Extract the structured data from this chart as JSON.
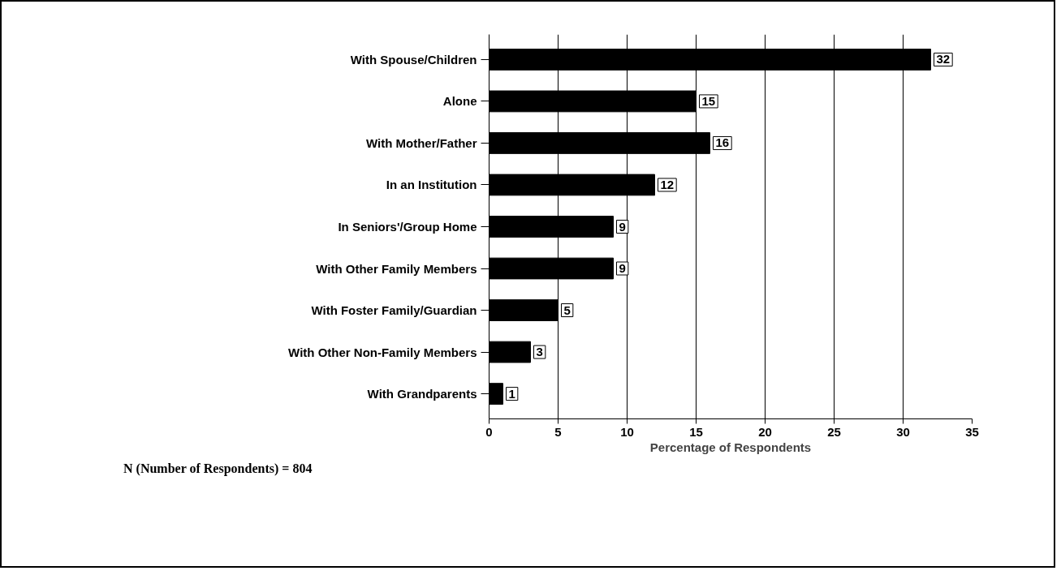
{
  "chart_data": {
    "type": "bar",
    "orientation": "horizontal",
    "xlabel": "Percentage of Respondents",
    "categories": [
      "With Spouse/Children",
      "Alone",
      "With Mother/Father",
      "In an Institution",
      "In Seniors'/Group Home",
      "With Other Family Members",
      "With Foster Family/Guardian",
      "With Other Non-Family Members",
      "With Grandparents"
    ],
    "values": [
      32,
      15,
      16,
      12,
      9,
      9,
      5,
      3,
      1
    ],
    "color": "#000000",
    "xlim": [
      0,
      35
    ],
    "xticks": [
      0,
      5,
      10,
      15,
      20,
      25,
      30,
      35
    ],
    "grid": "x",
    "data_labels": true,
    "annotations": [
      "N (Number of Respondents) = 804"
    ]
  }
}
